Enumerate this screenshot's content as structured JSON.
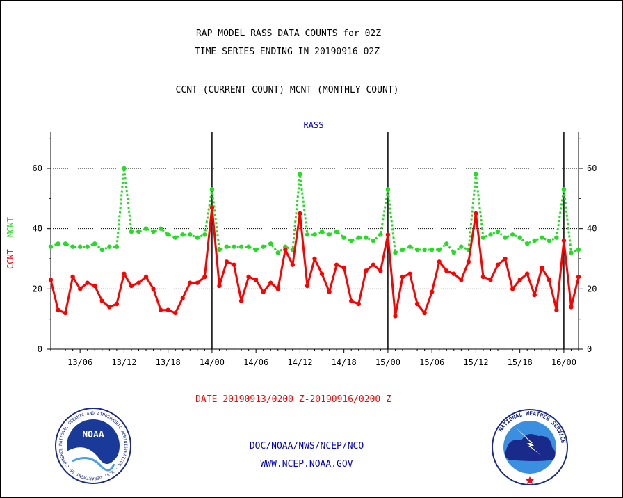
{
  "chart_data": {
    "type": "line",
    "title_lines": [
      "RAP MODEL RASS DATA COUNTS for 02Z",
      "TIME SERIES ENDING IN 20190916 02Z"
    ],
    "subtitle": "CCNT (CURRENT COUNT) MCNT (MONTHLY COUNT)",
    "panel_label": "RASS",
    "ylabel_series": [
      "CCNT",
      "MCNT"
    ],
    "xlabel": "DATE 20190913/0200 Z-20190916/0200 Z",
    "x_ticks": [
      "13/06",
      "13/12",
      "13/18",
      "14/00",
      "14/06",
      "14/12",
      "14/18",
      "15/00",
      "15/06",
      "15/12",
      "15/18",
      "16/00"
    ],
    "y_ticks": [
      "0",
      "20",
      "40",
      "60"
    ],
    "ylim": [
      0,
      72
    ],
    "xlim_hours": [
      2,
      74
    ],
    "day_boundaries_hours": [
      24,
      48,
      72
    ],
    "grid": "horizontal at 20, 40, 60 (dotted)",
    "x_hours": [
      2,
      3,
      4,
      5,
      6,
      7,
      8,
      9,
      10,
      11,
      12,
      13,
      14,
      15,
      16,
      17,
      18,
      19,
      20,
      21,
      22,
      23,
      24,
      25,
      26,
      27,
      28,
      29,
      30,
      31,
      32,
      33,
      34,
      35,
      36,
      37,
      38,
      39,
      40,
      41,
      42,
      43,
      44,
      45,
      46,
      47,
      48,
      49,
      50,
      51,
      52,
      53,
      54,
      55,
      56,
      57,
      58,
      59,
      60,
      61,
      62,
      63,
      64,
      65,
      66,
      67,
      68,
      69,
      70,
      71,
      72,
      73,
      74
    ],
    "series": [
      {
        "name": "CCNT",
        "color": "#ff0000",
        "style": "solid",
        "values": [
          23,
          13,
          12,
          24,
          20,
          22,
          21,
          16,
          14,
          15,
          25,
          21,
          22,
          24,
          20,
          13,
          13,
          12,
          17,
          22,
          22,
          24,
          47,
          21,
          29,
          28,
          16,
          24,
          23,
          19,
          22,
          20,
          33,
          28,
          45,
          21,
          30,
          25,
          19,
          28,
          27,
          16,
          15,
          26,
          28,
          26,
          38,
          11,
          24,
          25,
          15,
          12,
          19,
          29,
          26,
          25,
          23,
          29,
          45,
          24,
          23,
          28,
          30,
          20,
          23,
          25,
          18,
          27,
          23,
          13,
          36,
          14,
          24
        ]
      },
      {
        "name": "MCNT",
        "color": "#22dd22",
        "style": "dotted",
        "values": [
          34,
          35,
          35,
          34,
          34,
          34,
          35,
          33,
          34,
          34,
          60,
          39,
          39,
          40,
          39,
          40,
          38,
          37,
          38,
          38,
          37,
          38,
          53,
          33,
          34,
          34,
          34,
          34,
          33,
          34,
          35,
          32,
          34,
          33,
          58,
          38,
          38,
          39,
          38,
          39,
          37,
          36,
          37,
          37,
          36,
          38,
          53,
          32,
          33,
          34,
          33,
          33,
          33,
          33,
          35,
          32,
          34,
          33,
          58,
          37,
          38,
          39,
          37,
          38,
          37,
          35,
          36,
          37,
          36,
          37,
          53,
          32,
          33
        ]
      }
    ]
  },
  "footer": {
    "line1": "DOC/NOAA/NWS/NCEP/NCO",
    "line2": "WWW.NCEP.NOAA.GOV"
  },
  "logos": {
    "left": {
      "inner_text": "NOAA",
      "ring_text": "NATIONAL OCEANIC AND ATMOSPHERIC ADMINISTRATION · U.S. DEPARTMENT OF COMMERCE"
    },
    "right": {
      "ring_text": "NATIONAL WEATHER SERVICE"
    }
  },
  "colors": {
    "title": "#000000",
    "panel_label": "#0000cc",
    "xlabel": "#ff0000",
    "footer": "#0000cc",
    "axis": "#000000"
  }
}
